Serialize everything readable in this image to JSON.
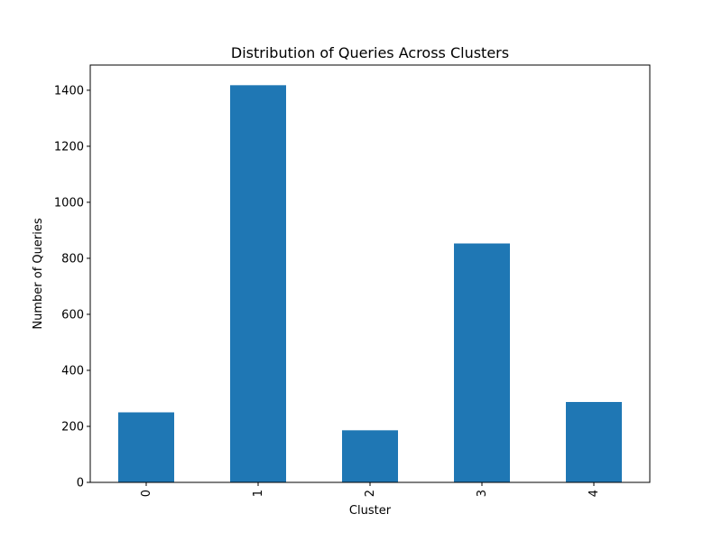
{
  "chart_data": {
    "type": "bar",
    "title": "Distribution of Queries Across Clusters",
    "xlabel": "Cluster",
    "ylabel": "Number of Queries",
    "categories": [
      "0",
      "1",
      "2",
      "3",
      "4"
    ],
    "values": [
      250,
      1418,
      186,
      853,
      287
    ],
    "ylim": [
      0,
      1490
    ],
    "yticks": [
      0,
      200,
      400,
      600,
      800,
      1000,
      1200,
      1400
    ],
    "x_tick_rotation": "vertical",
    "grid": false,
    "bar_color": "#1f77b4"
  }
}
